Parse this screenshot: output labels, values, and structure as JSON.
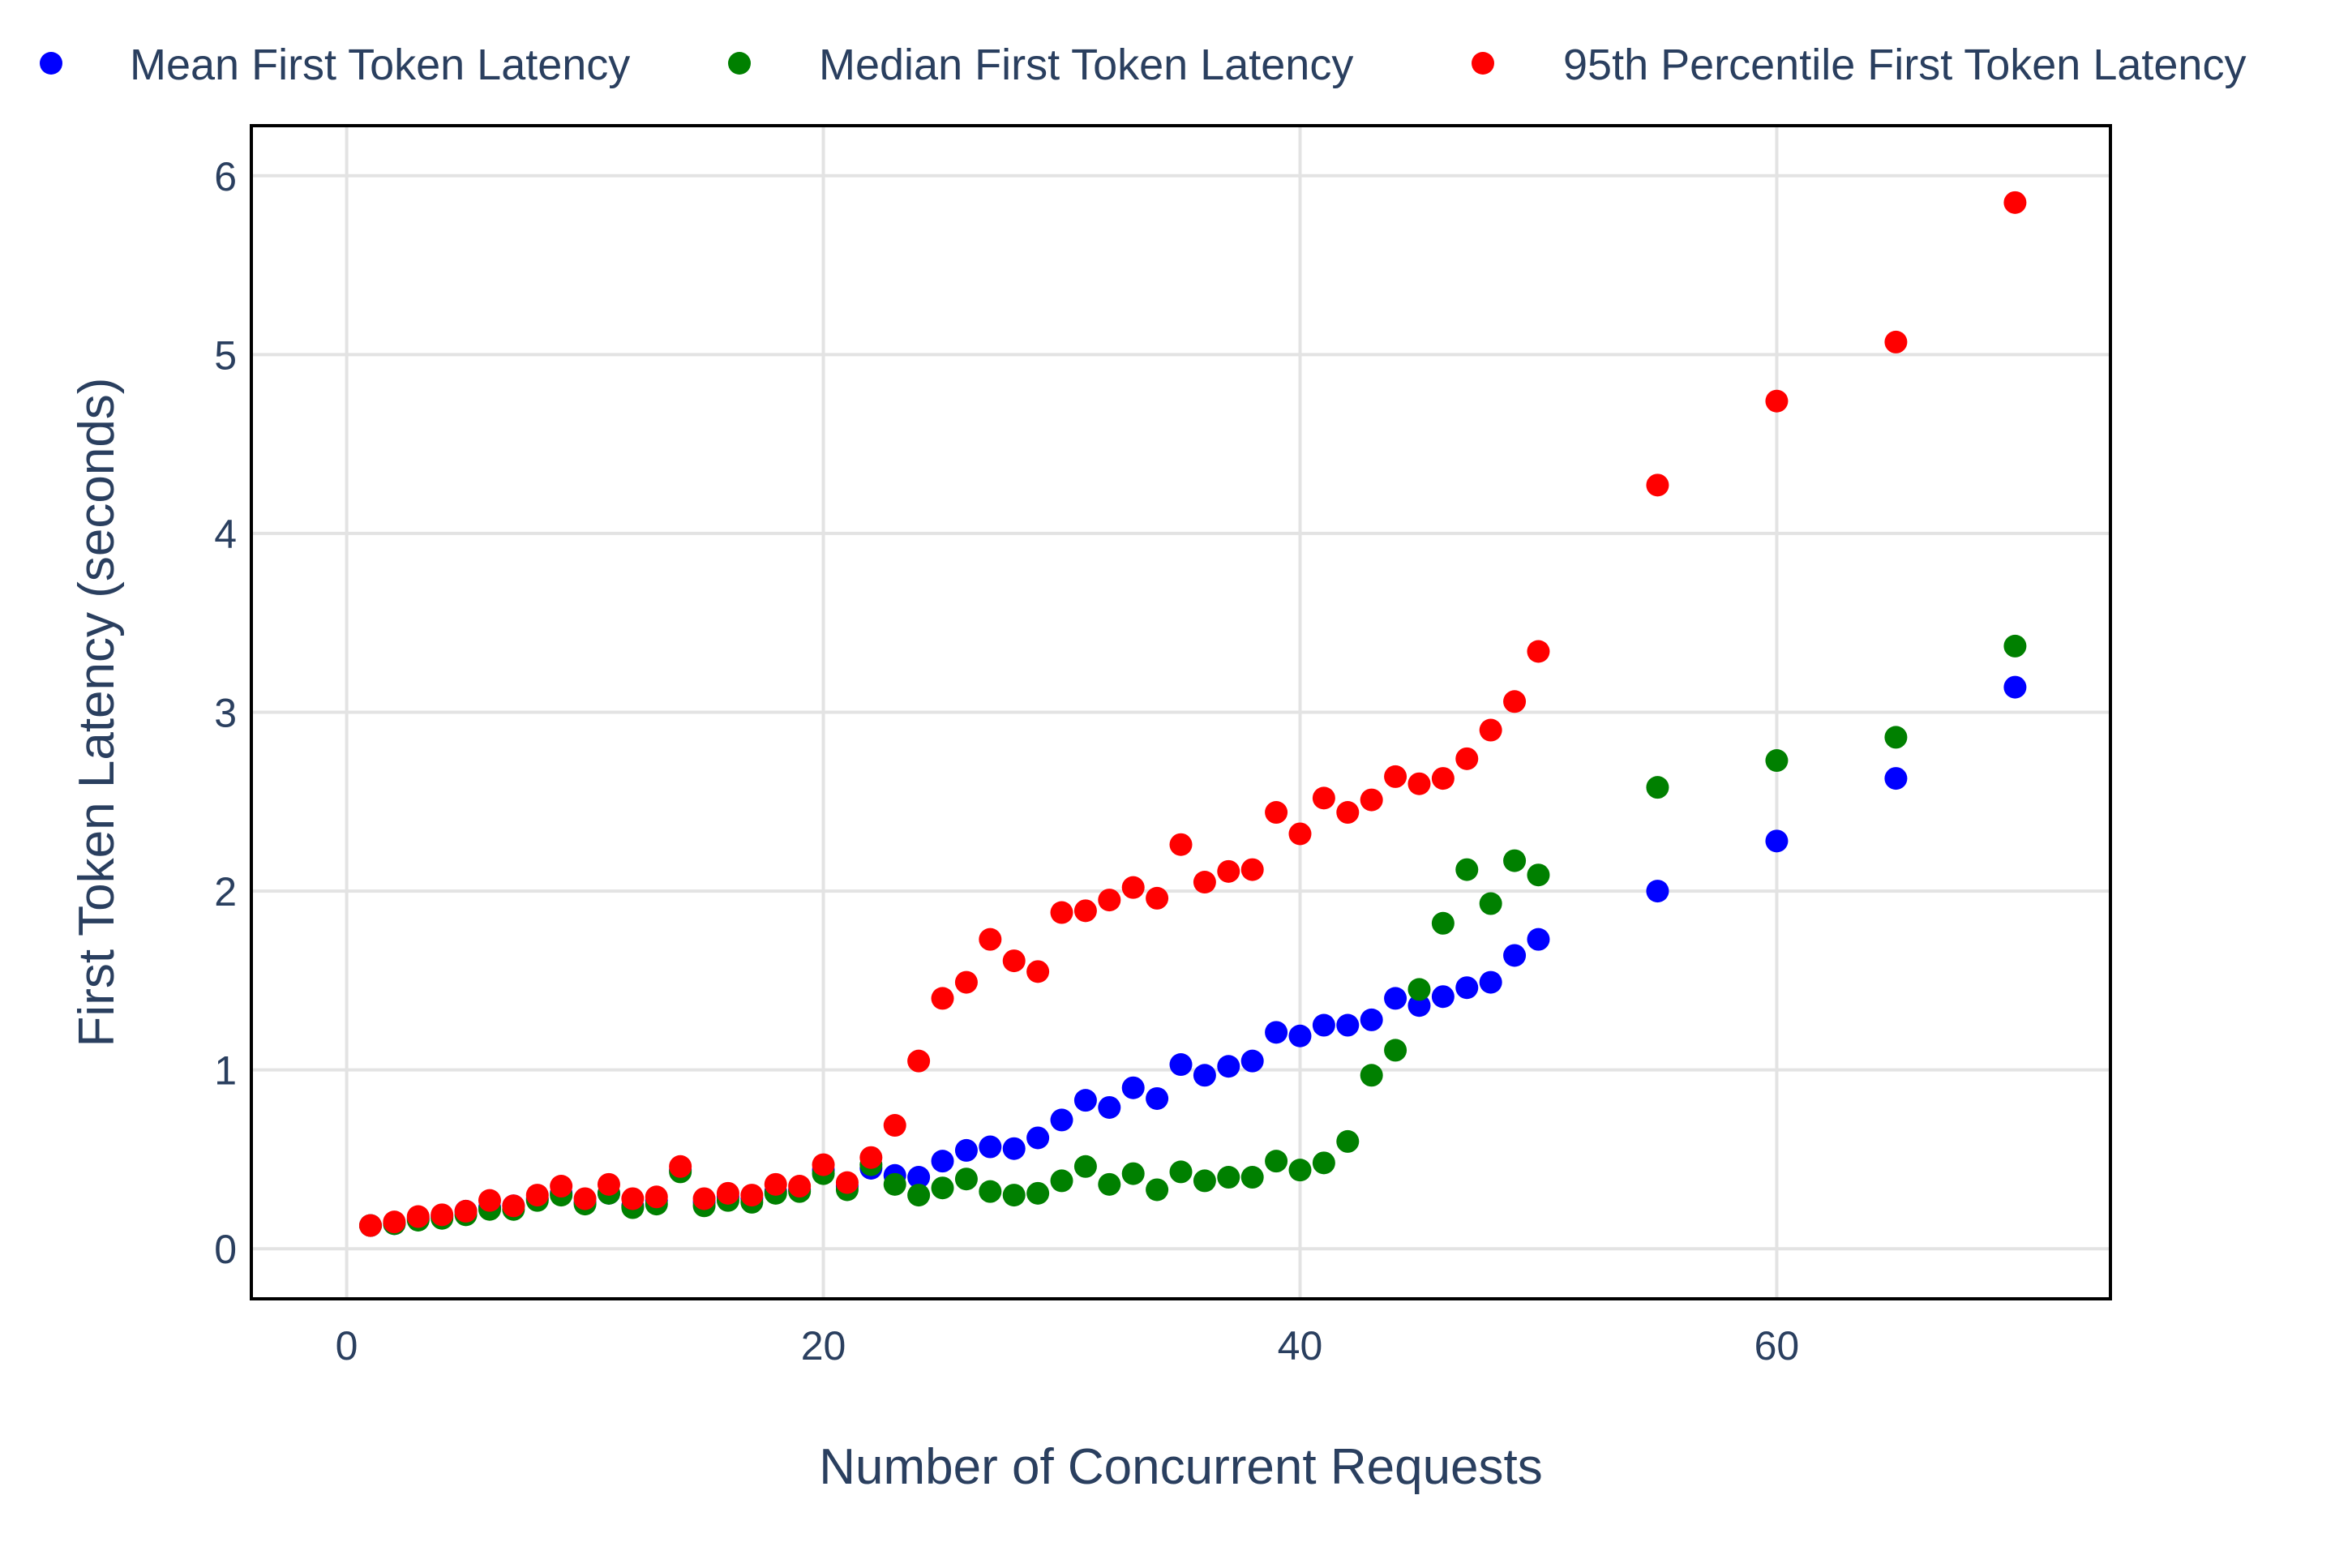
{
  "chart_data": {
    "type": "scatter",
    "title": "",
    "xlabel": "Number of Concurrent Requests",
    "ylabel": "First Token Latency (seconds)",
    "xlim": [
      -4,
      74
    ],
    "ylim": [
      -0.28,
      6.28
    ],
    "x_ticks": [
      0,
      20,
      40,
      60
    ],
    "y_ticks": [
      0,
      1,
      2,
      3,
      4,
      5,
      6
    ],
    "grid": true,
    "legend_position": "top",
    "series": [
      {
        "name": "Mean First Token Latency",
        "color": "#0000ff",
        "x": [
          1,
          2,
          3,
          4,
          5,
          6,
          7,
          8,
          9,
          10,
          11,
          12,
          13,
          14,
          15,
          16,
          17,
          18,
          19,
          20,
          21,
          22,
          23,
          24,
          25,
          26,
          27,
          28,
          29,
          30,
          31,
          32,
          33,
          34,
          35,
          36,
          37,
          38,
          39,
          40,
          41,
          42,
          43,
          44,
          45,
          46,
          47,
          48,
          49,
          50,
          55,
          60,
          65,
          70
        ],
        "y": [
          0.13,
          0.14,
          0.17,
          0.18,
          0.21,
          0.23,
          0.24,
          0.28,
          0.31,
          0.26,
          0.31,
          0.24,
          0.27,
          0.44,
          0.26,
          0.29,
          0.28,
          0.32,
          0.33,
          0.44,
          0.35,
          0.45,
          0.41,
          0.4,
          0.49,
          0.55,
          0.57,
          0.56,
          0.62,
          0.72,
          0.83,
          0.79,
          0.9,
          0.84,
          1.03,
          0.97,
          1.02,
          1.05,
          1.21,
          1.19,
          1.25,
          1.25,
          1.28,
          1.4,
          1.36,
          1.41,
          1.46,
          1.49,
          1.64,
          1.73,
          2.0,
          2.28,
          2.63,
          3.14
        ]
      },
      {
        "name": "Median First Token Latency",
        "color": "#008000",
        "x": [
          1,
          2,
          3,
          4,
          5,
          6,
          7,
          8,
          9,
          10,
          11,
          12,
          13,
          14,
          15,
          16,
          17,
          18,
          19,
          20,
          21,
          22,
          23,
          24,
          25,
          26,
          27,
          28,
          29,
          30,
          31,
          32,
          33,
          34,
          35,
          36,
          37,
          38,
          39,
          40,
          41,
          42,
          43,
          44,
          45,
          46,
          47,
          48,
          49,
          50,
          55,
          60,
          65,
          70
        ],
        "y": [
          0.13,
          0.14,
          0.16,
          0.17,
          0.19,
          0.22,
          0.22,
          0.27,
          0.3,
          0.25,
          0.31,
          0.23,
          0.25,
          0.43,
          0.24,
          0.27,
          0.26,
          0.31,
          0.32,
          0.42,
          0.33,
          0.47,
          0.36,
          0.3,
          0.34,
          0.39,
          0.32,
          0.3,
          0.31,
          0.38,
          0.46,
          0.36,
          0.42,
          0.33,
          0.43,
          0.38,
          0.4,
          0.4,
          0.49,
          0.44,
          0.48,
          0.6,
          0.97,
          1.11,
          1.45,
          1.82,
          2.12,
          1.93,
          2.17,
          2.09,
          2.58,
          2.73,
          2.86,
          3.37
        ]
      },
      {
        "name": "95th Percentile First Token Latency",
        "color": "#ff0000",
        "x": [
          1,
          2,
          3,
          4,
          5,
          6,
          7,
          8,
          9,
          10,
          11,
          12,
          13,
          14,
          15,
          16,
          17,
          18,
          19,
          20,
          21,
          22,
          23,
          24,
          25,
          26,
          27,
          28,
          29,
          30,
          31,
          32,
          33,
          34,
          35,
          36,
          37,
          38,
          39,
          40,
          41,
          42,
          43,
          44,
          45,
          46,
          47,
          48,
          49,
          50,
          55,
          60,
          65,
          70
        ],
        "y": [
          0.13,
          0.15,
          0.18,
          0.19,
          0.21,
          0.27,
          0.24,
          0.3,
          0.35,
          0.28,
          0.36,
          0.28,
          0.29,
          0.46,
          0.28,
          0.31,
          0.3,
          0.36,
          0.35,
          0.47,
          0.37,
          0.51,
          0.69,
          1.05,
          1.4,
          1.49,
          1.73,
          1.61,
          1.55,
          1.88,
          1.89,
          1.95,
          2.02,
          1.96,
          2.26,
          2.05,
          2.11,
          2.12,
          2.44,
          2.32,
          2.52,
          2.44,
          2.51,
          2.64,
          2.6,
          2.63,
          2.74,
          2.9,
          3.06,
          3.34,
          4.27,
          4.74,
          5.07,
          5.85
        ]
      }
    ]
  }
}
